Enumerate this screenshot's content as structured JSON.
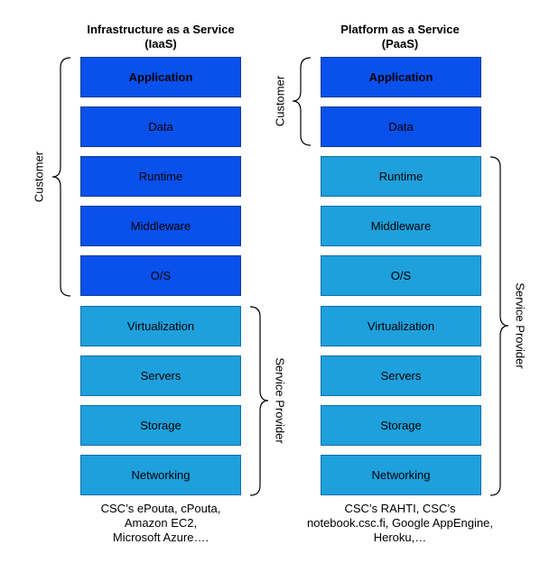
{
  "iaas": {
    "title_line1": "Infrastructure as a Service",
    "title_line2": "(IaaS)",
    "layers": [
      "Application",
      "Data",
      "Runtime",
      "Middleware",
      "O/S",
      "Virtualization",
      "Servers",
      "Storage",
      "Networking"
    ],
    "customer_label": "Customer",
    "provider_label": "Service Provider",
    "footer_lines": [
      "CSC’s ePouta, cPouta,",
      "Amazon EC2,",
      "Microsoft Azure…."
    ]
  },
  "paas": {
    "title_line1": "Platform as a Service",
    "title_line2": "(PaaS)",
    "layers": [
      "Application",
      "Data",
      "Runtime",
      "Middleware",
      "O/S",
      "Virtualization",
      "Servers",
      "Storage",
      "Networking"
    ],
    "customer_label": "Customer",
    "provider_label": "Service Provider",
    "footer_lines": [
      "CSC’s RAHTI, CSC’s",
      "notebook.csc.fi, Google AppEngine,",
      "Heroku,…"
    ]
  },
  "colors": {
    "customer_fill": "#0a50ec",
    "provider_fill": "#1ea0dc"
  }
}
